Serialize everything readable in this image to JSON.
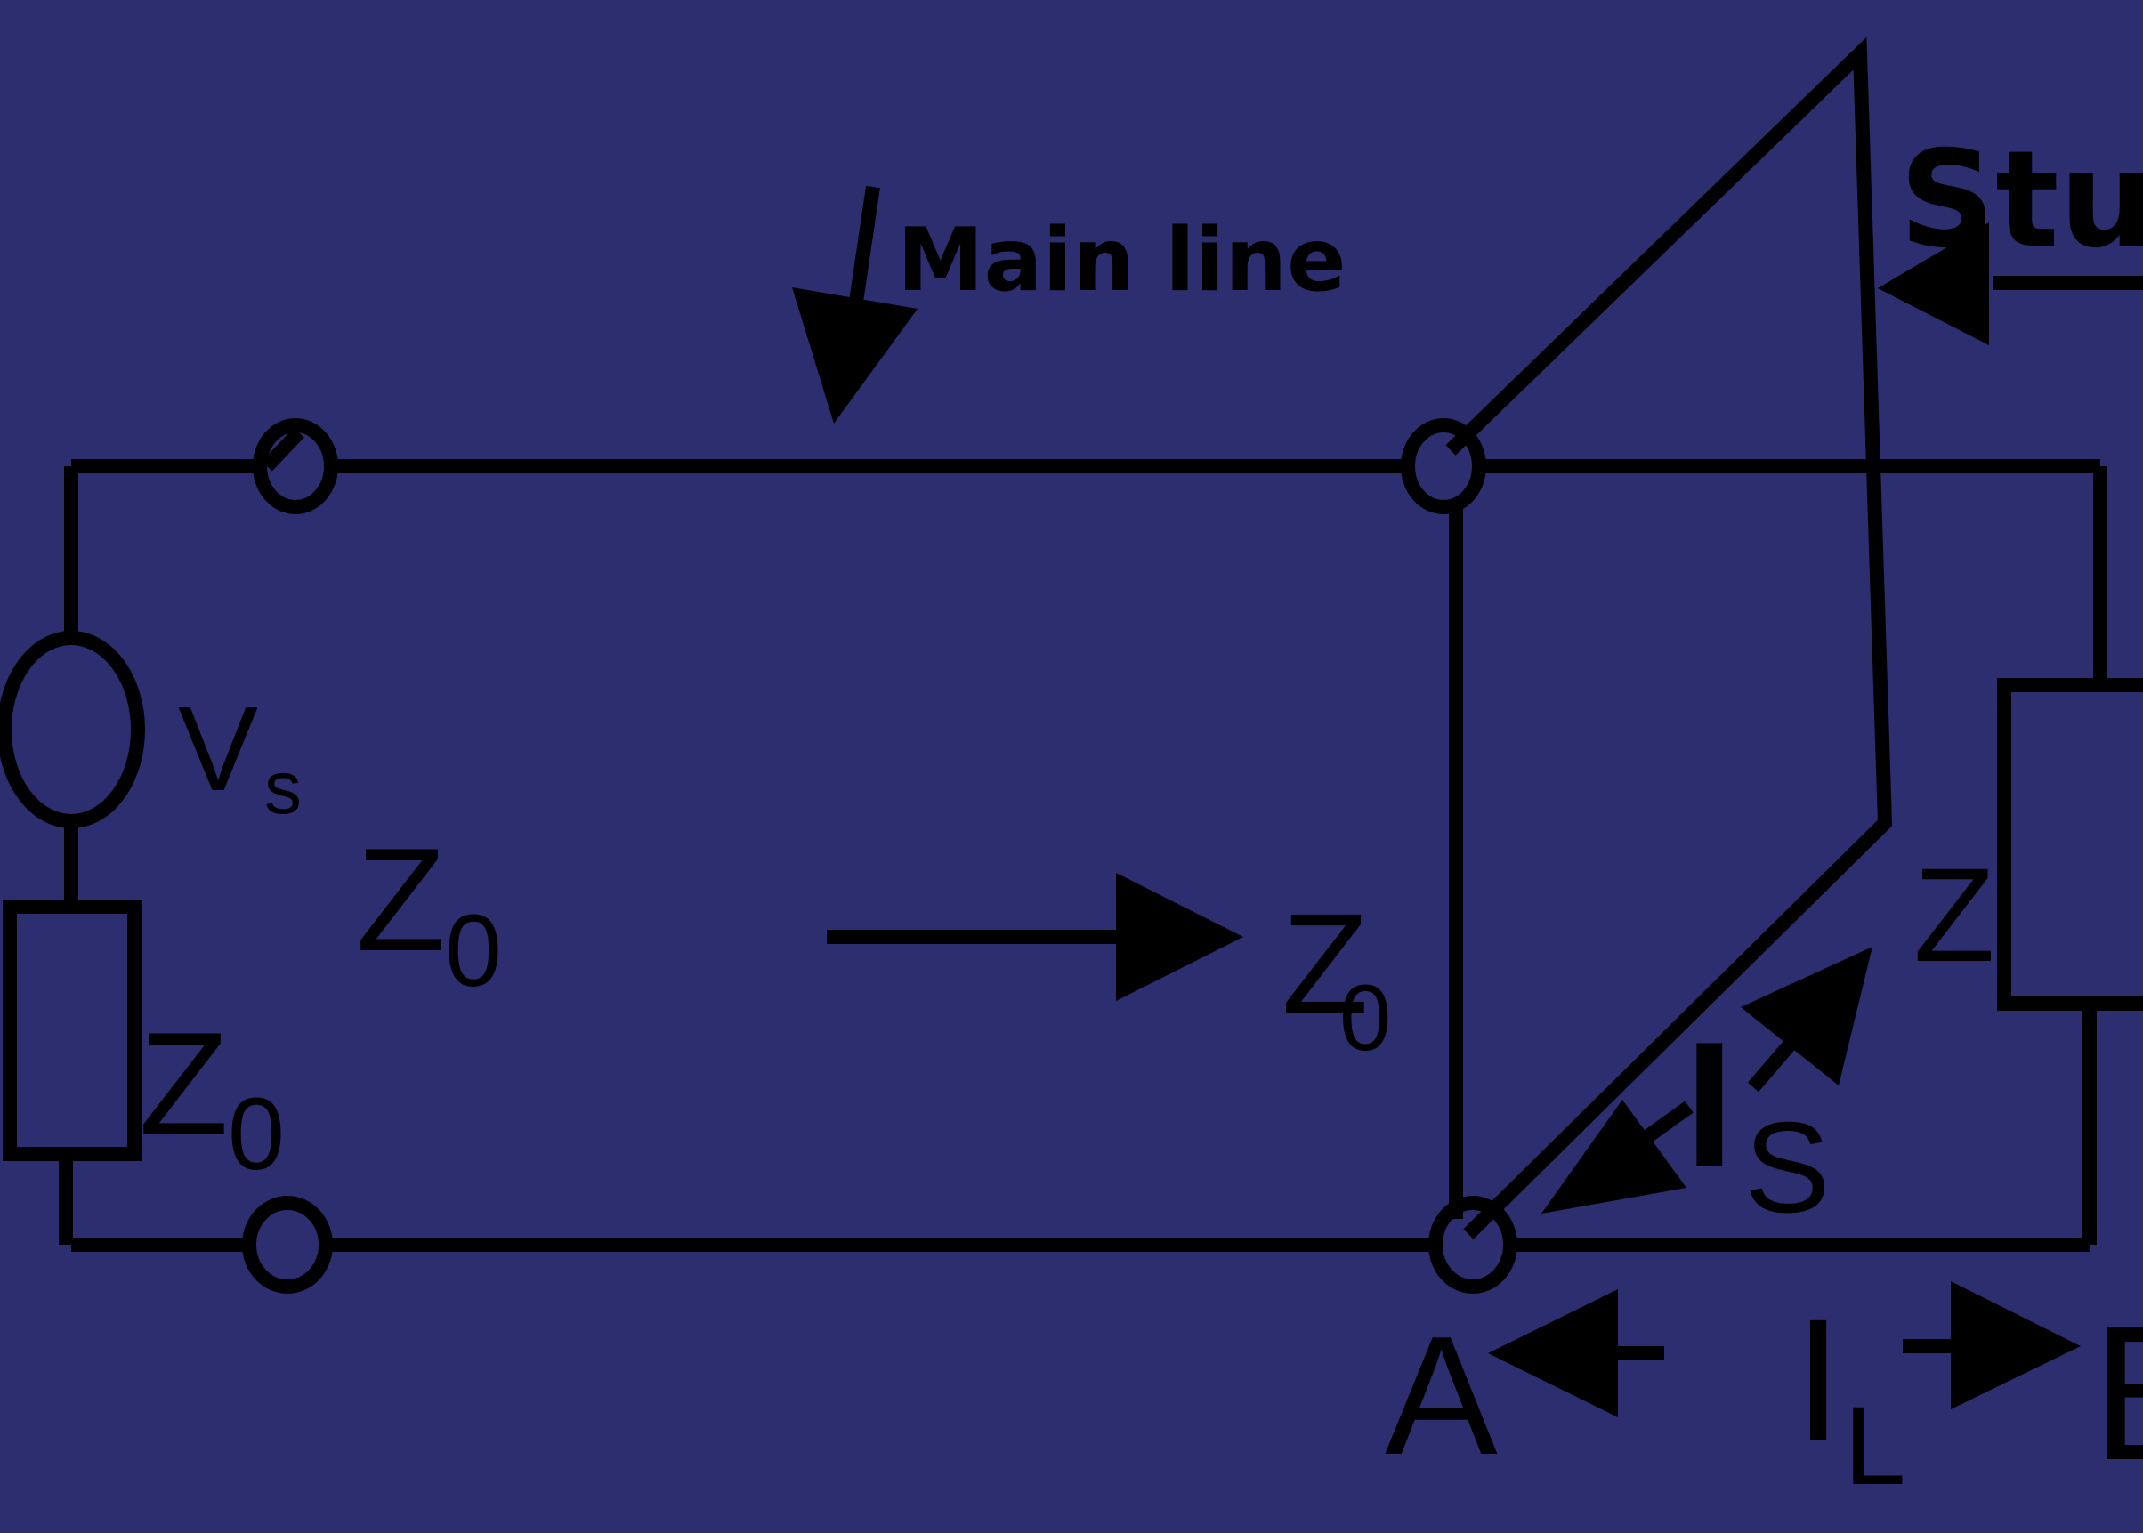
{
  "diagram": {
    "background_color": "#2c2e70",
    "stroke_color": "#000000",
    "labels": {
      "main_line": "Main line",
      "stub": "Stub",
      "source_voltage": "V",
      "source_voltage_sub": "s",
      "line_impedance": "Z",
      "line_impedance_sub": "0",
      "source_impedance": "Z",
      "source_impedance_sub": "0",
      "looking_impedance": "Z",
      "looking_impedance_sub": "0",
      "stub_current": "I",
      "stub_current_sub": "S",
      "load_current": "I",
      "load_current_sub": "L",
      "load_impedance": "Z",
      "node_a": "A",
      "node_b": "B"
    }
  }
}
